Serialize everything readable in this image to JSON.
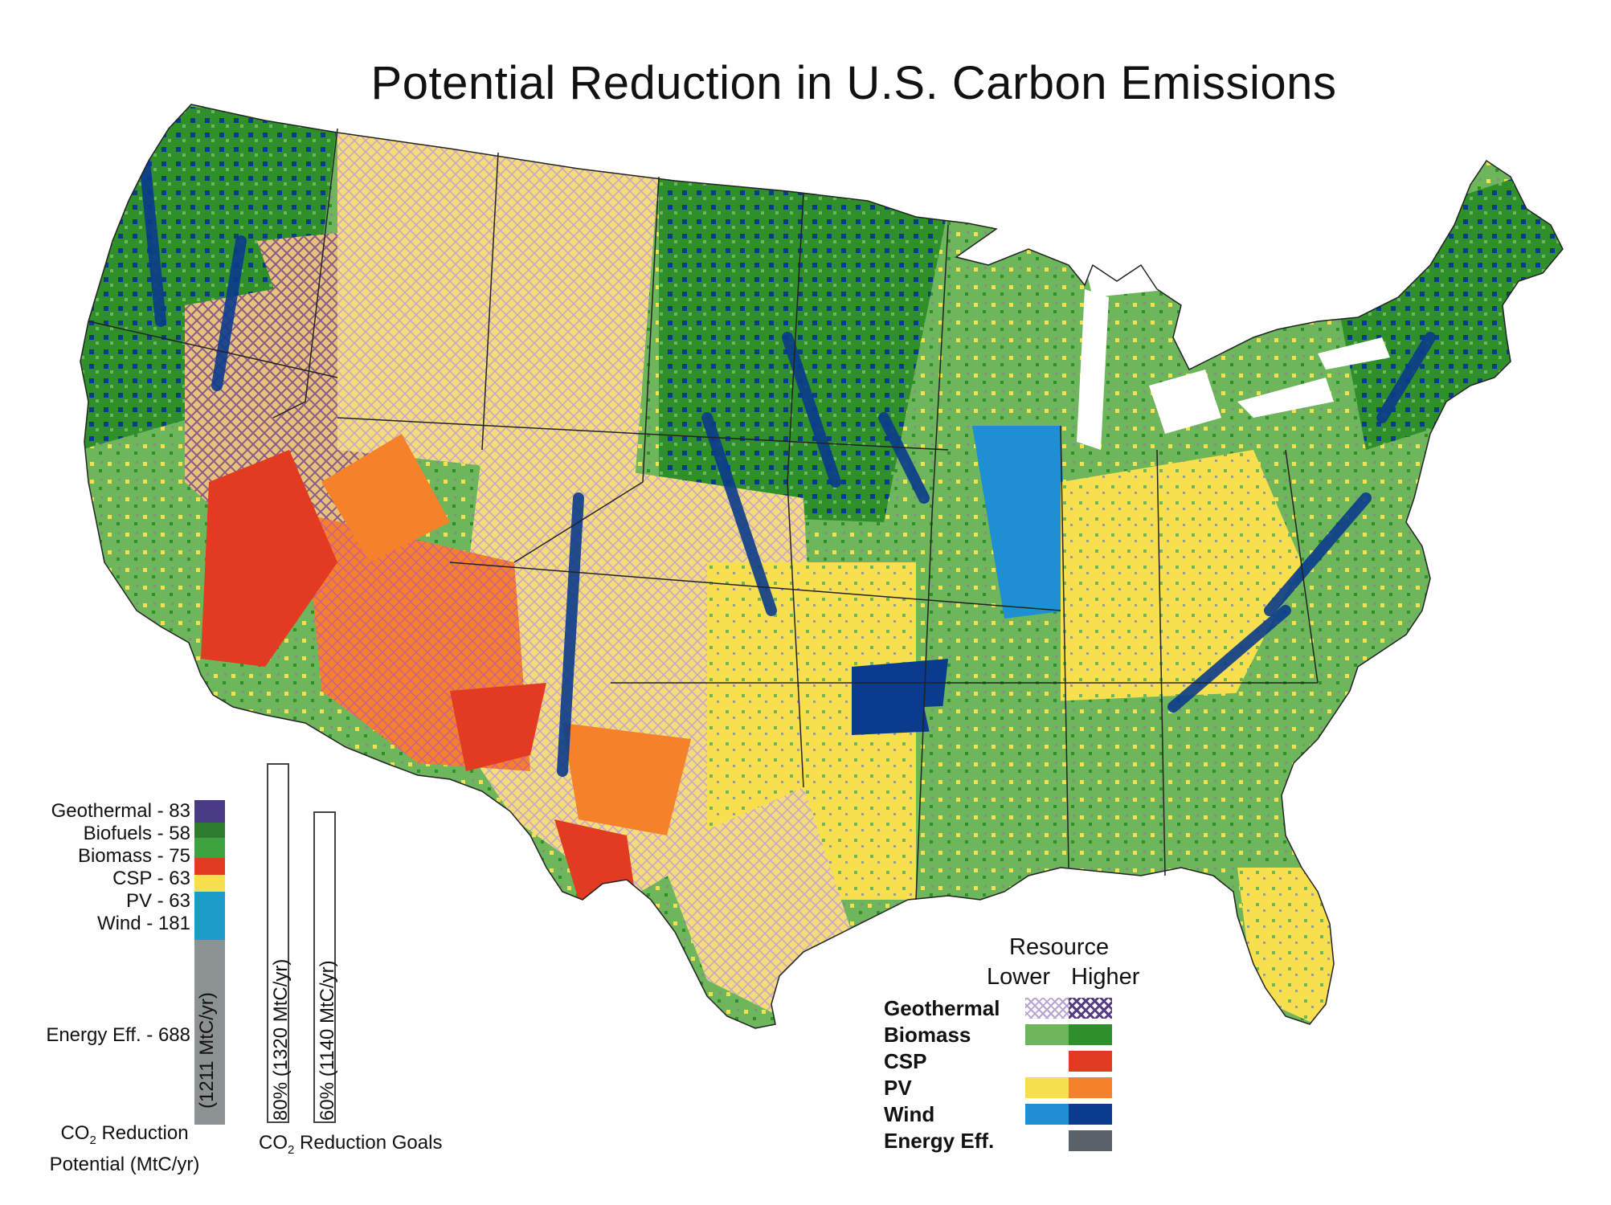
{
  "title": "Potential Reduction in U.S. Carbon Emissions",
  "colors": {
    "geothermal_low": "#b7a3d3",
    "geothermal_high": "#553c83",
    "biomass_low": "#6db65b",
    "biomass_high": "#2f8f2a",
    "csp_high": "#e23b22",
    "pv_low": "#f7df4d",
    "pv_high": "#f5822a",
    "wind_low": "#1e8fd2",
    "wind_high": "#0b3b8c",
    "energy_eff": "#5b636a",
    "pv_hatch_bg": "#f4dd78"
  },
  "potential_stack": {
    "items": [
      {
        "label": "Geothermal - 83",
        "name": "Geothermal",
        "value": 83,
        "color": "#4a3a85"
      },
      {
        "label": "Biofuels - 58",
        "name": "Biofuels",
        "value": 58,
        "color": "#2e7d2e"
      },
      {
        "label": "Biomass - 75",
        "name": "Biomass",
        "value": 75,
        "color": "#3ea33e"
      },
      {
        "label": "CSP - 63",
        "name": "CSP",
        "value": 63,
        "color": "#e23b22"
      },
      {
        "label": "PV - 63",
        "name": "PV",
        "value": 63,
        "color": "#f7df4d"
      },
      {
        "label": "Wind - 181",
        "name": "Wind",
        "value": 181,
        "color": "#1c9bc8"
      },
      {
        "label": "Energy Eff. - 688",
        "name": "Energy Eff.",
        "value": 688,
        "color": "#8c9194"
      }
    ],
    "bar_text": "(1211 MtC/yr)",
    "caption_line1_pre": "CO",
    "caption_line1_sub": "2",
    "caption_line1_post": " Reduction",
    "caption_line2": "Potential (MtC/yr)"
  },
  "goals": {
    "bars": [
      {
        "text": "80% (1320 MtC/yr)",
        "value": 1320
      },
      {
        "text": "60% (1140 MtC/yr)",
        "value": 1140
      }
    ],
    "caption_pre": "CO",
    "caption_sub": "2",
    "caption_post": " Reduction Goals"
  },
  "legend": {
    "heading": "Resource",
    "lower": "Lower",
    "higher": "Higher",
    "rows": [
      {
        "label": "Geothermal",
        "low": "hatch-low",
        "high": "hatch-high"
      },
      {
        "label": "Biomass",
        "low": "#6db65b",
        "high": "#2f8f2a"
      },
      {
        "label": "CSP",
        "low": "",
        "high": "#e23b22"
      },
      {
        "label": "PV",
        "low": "#f7df4d",
        "high": "#f5822a"
      },
      {
        "label": "Wind",
        "low": "#1e8fd2",
        "high": "#0b3b8c"
      },
      {
        "label": "Energy Eff.",
        "low": "",
        "high": "#5b636a"
      }
    ]
  }
}
